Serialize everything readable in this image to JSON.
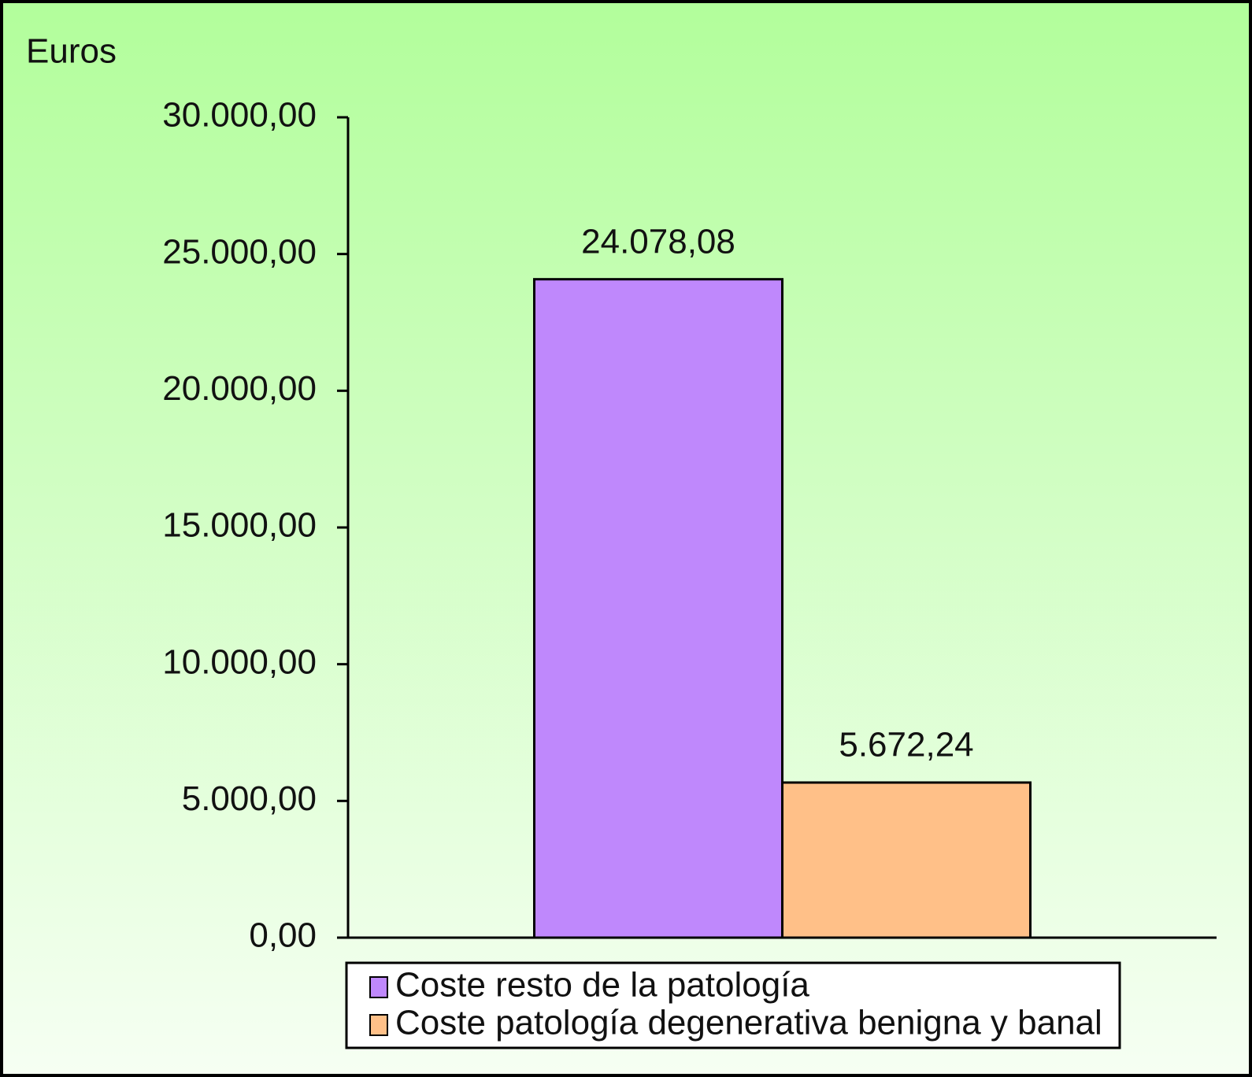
{
  "chart_data": {
    "type": "bar",
    "y_label": "Euros",
    "categories": [
      null
    ],
    "series": [
      {
        "name": "Coste resto de la patología",
        "color": "#bf88fc",
        "values": [
          24078.08
        ],
        "value_labels": [
          "24.078,08"
        ]
      },
      {
        "name": "Coste patología degenerativa benigna y banal",
        "color": "#ffc088",
        "values": [
          5672.24
        ],
        "value_labels": [
          "5.672,24"
        ]
      }
    ],
    "ylim": [
      0,
      30000
    ],
    "yticks": [
      {
        "value": 0,
        "label": "0,00"
      },
      {
        "value": 5000,
        "label": "5.000,00"
      },
      {
        "value": 10000,
        "label": "10.000,00"
      },
      {
        "value": 15000,
        "label": "15.000,00"
      },
      {
        "value": 20000,
        "label": "20.000,00"
      },
      {
        "value": 25000,
        "label": "25.000,00"
      },
      {
        "value": 30000,
        "label": "30.000,00"
      }
    ],
    "grid": false,
    "legend": "bottom"
  }
}
